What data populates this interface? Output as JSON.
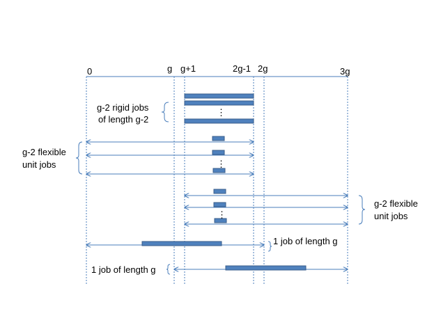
{
  "axis_ticks": [
    {
      "label": "0"
    },
    {
      "label": "g"
    },
    {
      "label": "g+1"
    },
    {
      "label": "2g-1"
    },
    {
      "label": "2g"
    },
    {
      "label": "3g"
    }
  ],
  "labels": {
    "rigid_line1": "g-2 rigid jobs",
    "rigid_line2": "of length g-2",
    "flex_left_line1": "g-2  flexible",
    "flex_left_line2": "unit jobs",
    "flex_right_line1": "g-2  flexible",
    "flex_right_line2": "unit jobs",
    "job_g_right": "1 job of  length g",
    "job_g_left": "1 job of length g"
  },
  "ellipsis": "⋮",
  "colors": {
    "bar_fill": "#4F81BD",
    "bar_stroke": "#385D8A",
    "line": "#4A7EBB",
    "text": "#000000"
  }
}
